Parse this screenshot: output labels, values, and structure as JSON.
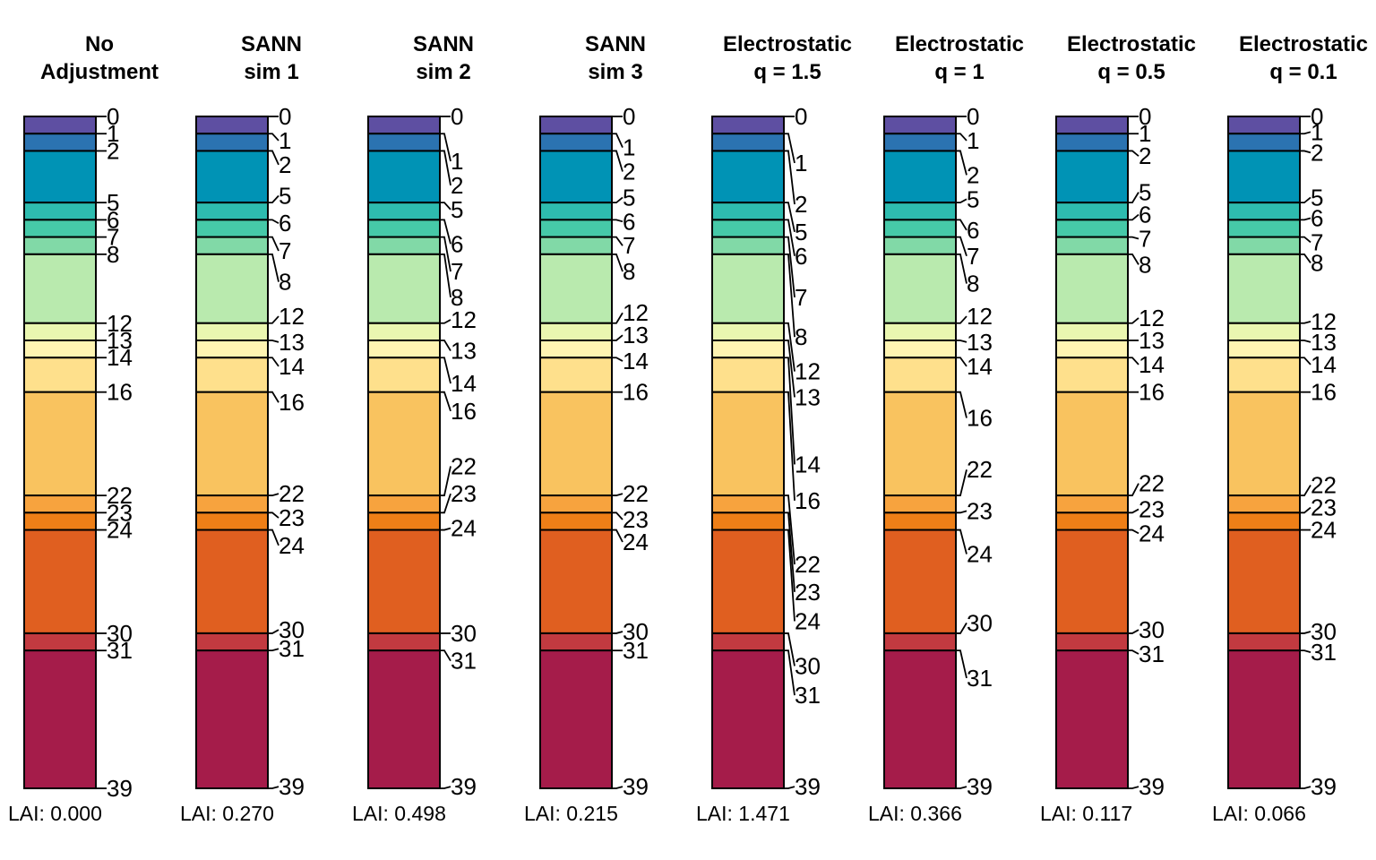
{
  "chart_data": {
    "type": "bar",
    "boundaries": [
      0,
      1,
      2,
      5,
      6,
      7,
      8,
      12,
      13,
      14,
      16,
      22,
      23,
      24,
      30,
      31,
      39
    ],
    "colors": [
      "#5E4FA2",
      "#2B73B1",
      "#0093B5",
      "#2EBCAF",
      "#46C9A8",
      "#81D9A7",
      "#B9EAAE",
      "#EAF6B0",
      "#FFF4B2",
      "#FEE08C",
      "#F9C35F",
      "#F7A33E",
      "#EE7F17",
      "#E05F20",
      "#C23A40",
      "#A51C4A"
    ],
    "ylim": [
      0,
      39
    ],
    "panels": [
      {
        "title_line1": "No",
        "title_line2": "Adjustment",
        "lai": "LAI: 0.000",
        "label_positions": [
          0,
          1,
          2,
          5,
          6,
          7,
          8,
          12,
          13,
          14,
          16,
          22,
          23,
          24,
          30,
          31,
          39
        ]
      },
      {
        "title_line1": "SANN",
        "title_line2": "sim 1",
        "lai": "LAI: 0.270",
        "label_positions": [
          0,
          1.4,
          2.8,
          4.6,
          6.2,
          7.8,
          9.6,
          11.6,
          13.1,
          14.5,
          16.6,
          21.9,
          23.3,
          24.9,
          29.8,
          30.9,
          38.9
        ]
      },
      {
        "title_line1": "SANN",
        "title_line2": "sim 2",
        "lai": "LAI: 0.498",
        "label_positions": [
          0,
          2.6,
          4.0,
          5.4,
          7.4,
          9.0,
          10.5,
          11.8,
          13.6,
          15.5,
          17.1,
          20.3,
          21.9,
          23.9,
          30.0,
          31.6,
          38.9
        ]
      },
      {
        "title_line1": "SANN",
        "title_line2": "sim 3",
        "lai": "LAI: 0.215",
        "label_positions": [
          0,
          1.8,
          3.2,
          4.7,
          6.1,
          7.5,
          9.0,
          11.4,
          12.7,
          14.2,
          16.0,
          21.9,
          23.4,
          24.7,
          29.9,
          31.0,
          38.9
        ]
      },
      {
        "title_line1": "Electrostatic",
        "title_line2": "q = 1.5",
        "lai": "LAI: 1.471",
        "label_positions": [
          0,
          2.7,
          5.1,
          6.7,
          8.1,
          10.5,
          12.8,
          14.8,
          16.3,
          20.2,
          22.3,
          26.0,
          27.6,
          29.3,
          31.9,
          33.6,
          38.9
        ]
      },
      {
        "title_line1": "Electrostatic",
        "title_line2": "q = 1",
        "lai": "LAI: 0.366",
        "label_positions": [
          0,
          1.4,
          3.4,
          4.8,
          6.6,
          8.1,
          9.7,
          11.6,
          13.1,
          14.5,
          17.5,
          20.5,
          22.9,
          25.4,
          29.4,
          32.6,
          38.9
        ]
      },
      {
        "title_line1": "Electrostatic",
        "title_line2": "q = 0.5",
        "lai": "LAI: 0.117",
        "label_positions": [
          0,
          1.0,
          2.3,
          4.4,
          5.7,
          7.1,
          8.6,
          11.7,
          13.0,
          14.4,
          16.0,
          21.3,
          22.8,
          24.2,
          29.8,
          31.2,
          38.9
        ]
      },
      {
        "title_line1": "Electrostatic",
        "title_line2": "q = 0.1",
        "lai": "LAI: 0.066",
        "label_positions": [
          0,
          0.9,
          2.1,
          4.7,
          5.9,
          7.3,
          8.5,
          11.9,
          13.1,
          14.4,
          16.0,
          21.4,
          22.7,
          24.0,
          29.9,
          31.1,
          38.9
        ]
      }
    ]
  }
}
